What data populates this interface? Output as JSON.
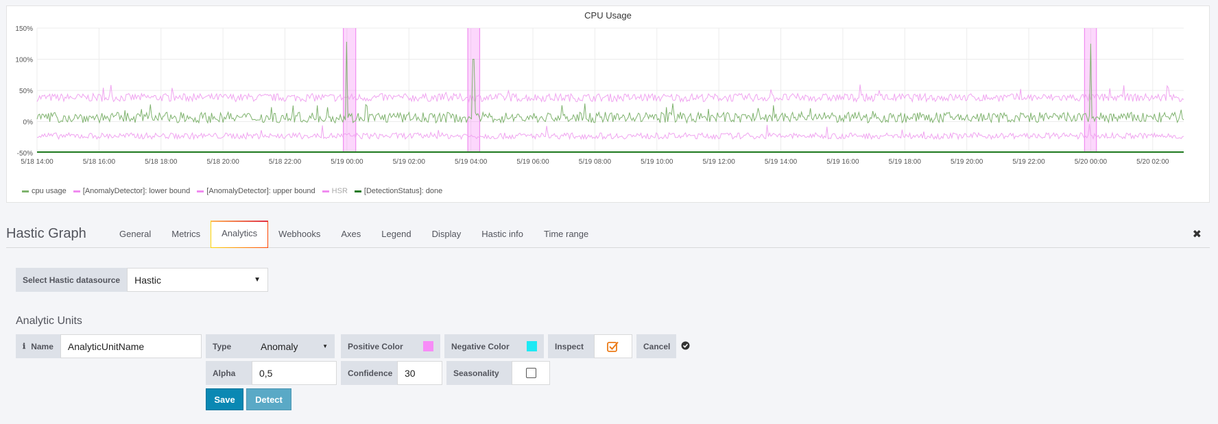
{
  "chart_data": {
    "type": "line",
    "title": "CPU Usage",
    "y_ticks": [
      "150%",
      "100%",
      "50%",
      "0%",
      "-50%"
    ],
    "y_range": [
      -50,
      150
    ],
    "x_ticks": [
      "5/18 14:00",
      "5/18 16:00",
      "5/18 18:00",
      "5/18 20:00",
      "5/18 22:00",
      "5/19 00:00",
      "5/19 02:00",
      "5/19 04:00",
      "5/19 06:00",
      "5/19 08:00",
      "5/19 10:00",
      "5/19 12:00",
      "5/19 14:00",
      "5/19 16:00",
      "5/19 18:00",
      "5/19 20:00",
      "5/19 22:00",
      "5/20 00:00",
      "5/20 02:00"
    ],
    "grid": true,
    "legend_placement": "bottom-left",
    "anomaly_regions": [
      {
        "from": "5/18 23:53",
        "to": "5/19 00:17"
      },
      {
        "from": "5/19 03:54",
        "to": "5/19 04:17"
      },
      {
        "from": "5/19 23:48",
        "to": "5/20 00:11"
      }
    ],
    "spikes": [
      {
        "x": "5/19 00:00",
        "y": 128
      },
      {
        "x": "5/19 04:05",
        "y": 100
      },
      {
        "x": "5/20 00:00",
        "y": 125
      }
    ],
    "series": [
      {
        "name": "cpu usage",
        "color": "#7eb26d",
        "typical_range": [
          -2,
          15
        ]
      },
      {
        "name": "[AnomalyDetector]: lower bound",
        "color": "#f0a3f0",
        "typical_range": [
          -28,
          -18
        ]
      },
      {
        "name": "[AnomalyDetector]: upper bound",
        "color": "#f0a3f0",
        "typical_range": [
          32,
          45
        ]
      },
      {
        "name": "HSR",
        "color": "#f0a3f0",
        "dimmed": true
      },
      {
        "name": "[DetectionStatus]: done",
        "color": "#1f7a1f",
        "value": -50
      }
    ]
  },
  "legend": [
    {
      "label": "cpu usage",
      "color": "#7eb26d"
    },
    {
      "label": "[AnomalyDetector]: lower bound",
      "color": "#f08cf0"
    },
    {
      "label": "[AnomalyDetector]: upper bound",
      "color": "#f08cf0"
    },
    {
      "label": "HSR",
      "color": "#f08cf0"
    },
    {
      "label": "[DetectionStatus]: done",
      "color": "#1f7a1f"
    }
  ],
  "editor": {
    "title": "Hastic Graph",
    "tabs": [
      "General",
      "Metrics",
      "Analytics",
      "Webhooks",
      "Axes",
      "Legend",
      "Display",
      "Hastic info",
      "Time range"
    ],
    "active_tab": "Analytics"
  },
  "datasource": {
    "label": "Select Hastic datasource",
    "value": "Hastic"
  },
  "analytic_units": {
    "section_title": "Analytic Units",
    "name_label": "Name",
    "name_value": "AnalyticUnitName",
    "type_label": "Type",
    "type_value": "Anomaly",
    "positive_color_label": "Positive Color",
    "positive_color": "#f78cf7",
    "negative_color_label": "Negative Color",
    "negative_color": "#1de9f4",
    "inspect_label": "Inspect",
    "cancel_label": "Cancel",
    "alpha_label": "Alpha",
    "alpha_value": "0,5",
    "confidence_label": "Confidence",
    "confidence_value": "30",
    "seasonality_label": "Seasonality",
    "save_label": "Save",
    "detect_label": "Detect"
  }
}
